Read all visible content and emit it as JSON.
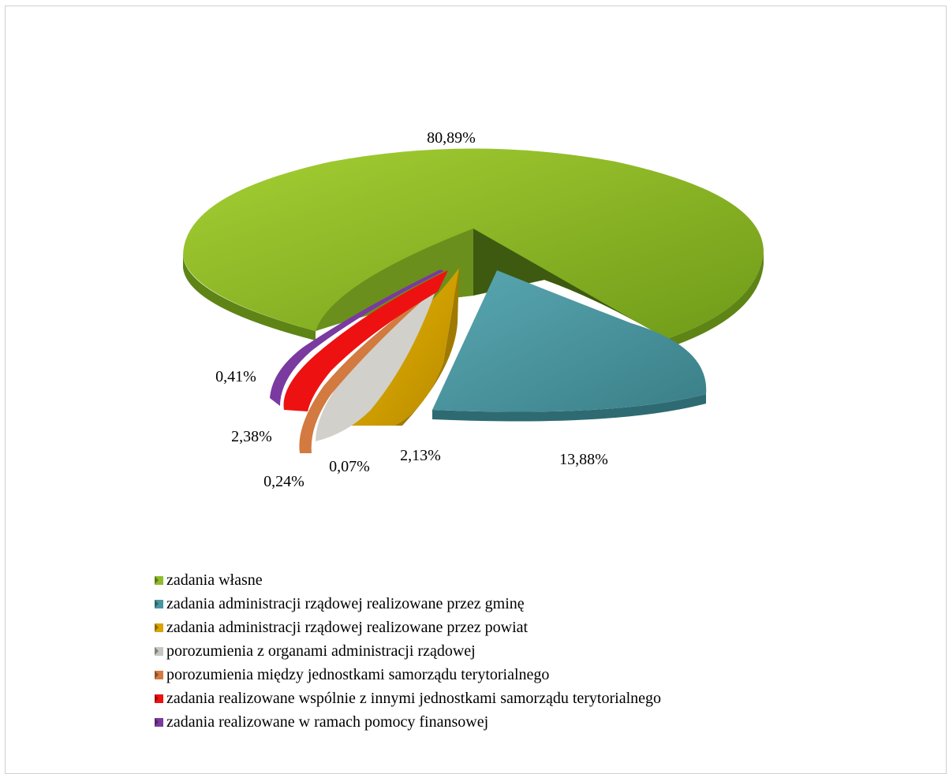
{
  "chart_data": {
    "type": "pie",
    "variant": "3d-exploded",
    "slices": [
      {
        "name": "zadania własne",
        "value": 80.89,
        "label": "80,89%",
        "color": "#8fbc2a"
      },
      {
        "name": "zadania administracji rządowej realizowane przez gminę",
        "value": 13.88,
        "label": "13,88%",
        "color": "#4a96a0"
      },
      {
        "name": "zadania administracji rządowej realizowane przez powiat",
        "value": 2.13,
        "label": "2,13%",
        "color": "#d9a400"
      },
      {
        "name": "porozumienia z organami administracji rządowej",
        "value": 0.07,
        "label": "0,07%",
        "color": "#c8c6c0"
      },
      {
        "name": "porozumienia między jednostkami samorządu terytorialnego",
        "value": 0.24,
        "label": "0,24%",
        "color": "#d27a40"
      },
      {
        "name": "zadania realizowane wspólnie z innymi jednostkami samorządu terytorialnego",
        "value": 2.38,
        "label": "2,38%",
        "color": "#ee1111"
      },
      {
        "name": "zadania realizowane w ramach pomocy finansowej",
        "value": 0.41,
        "label": "0,41%",
        "color": "#7a3aa0"
      }
    ],
    "legend_position": "bottom"
  }
}
